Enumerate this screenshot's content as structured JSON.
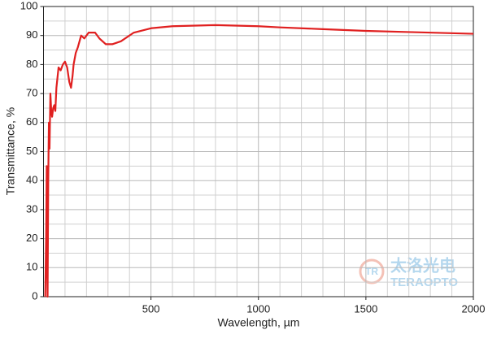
{
  "chart_data": {
    "type": "line",
    "xlabel": "Wavelength, µm",
    "ylabel": "Transmittance, %",
    "watermark": {
      "cn": "太洛光电",
      "en": "TERAOPTO",
      "logo": "TR"
    },
    "x": [
      8,
      12,
      15,
      17,
      19,
      22,
      25,
      28,
      32,
      36,
      40,
      45,
      50,
      55,
      60,
      70,
      80,
      90,
      100,
      110,
      120,
      128,
      135,
      140,
      150,
      160,
      175,
      190,
      210,
      240,
      260,
      290,
      320,
      360,
      420,
      500,
      600,
      800,
      1000,
      1100,
      1300,
      1500,
      1700,
      2000
    ],
    "series": [
      {
        "name": "Transmittance",
        "color": "#e02020",
        "values": [
          0,
          20,
          45,
          10,
          0,
          40,
          60,
          51,
          70,
          64,
          62,
          65,
          66,
          64,
          72,
          79,
          78,
          80,
          81,
          79,
          74,
          72,
          76,
          80,
          84,
          86,
          90,
          89,
          91,
          91,
          89,
          87,
          87,
          88,
          91,
          92.5,
          93.2,
          93.6,
          93.2,
          92.8,
          92.2,
          91.6,
          91.2,
          90.6
        ]
      }
    ],
    "xlim": [
      0,
      2000
    ],
    "xticks": [
      500,
      1000,
      1500,
      2000
    ],
    "xminorticks": [
      100,
      200,
      300,
      400,
      600,
      700,
      800,
      900,
      1100,
      1200,
      1300,
      1400,
      1600,
      1700,
      1800,
      1900
    ],
    "ylim": [
      0,
      100
    ],
    "yticks": [
      0,
      10,
      20,
      30,
      40,
      50,
      60,
      70,
      80,
      90,
      100
    ],
    "yminorticks": [
      5,
      15,
      25,
      35,
      45,
      55,
      65,
      75,
      85,
      95
    ],
    "grid": true
  }
}
